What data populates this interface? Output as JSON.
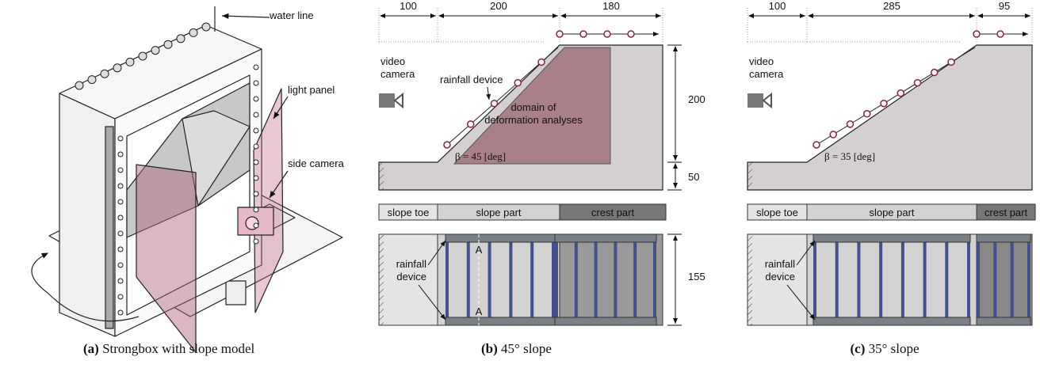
{
  "panel_a": {
    "labels": {
      "water_line": "water line",
      "light_panel": "light panel",
      "side_camera": "side camera"
    },
    "caption": {
      "tag": "(a)",
      "text": "Strongbox with slope model"
    }
  },
  "panel_b": {
    "top_dims": [
      "100",
      "200",
      "180"
    ],
    "right_dims": [
      "200",
      "50",
      "155"
    ],
    "video_camera": [
      "video",
      "camera"
    ],
    "rainfall_device": "rainfall device",
    "domain": [
      "domain of",
      "deformation analyses"
    ],
    "beta": "β = 45 [deg]",
    "parts": [
      "slope toe",
      "slope part",
      "crest part"
    ],
    "plan_rainfall": [
      "rainfall",
      "device"
    ],
    "section_marks": [
      "A",
      "A"
    ],
    "caption": {
      "tag": "(b)",
      "text": "45° slope"
    }
  },
  "panel_c": {
    "top_dims": [
      "100",
      "285",
      "95"
    ],
    "video_camera": [
      "video",
      "camera"
    ],
    "beta": "β = 35 [deg]",
    "parts": [
      "slope toe",
      "slope part",
      "crest part"
    ],
    "plan_rainfall": [
      "rainfall",
      "device"
    ],
    "caption": {
      "tag": "(c)",
      "text": "35° slope"
    }
  }
}
